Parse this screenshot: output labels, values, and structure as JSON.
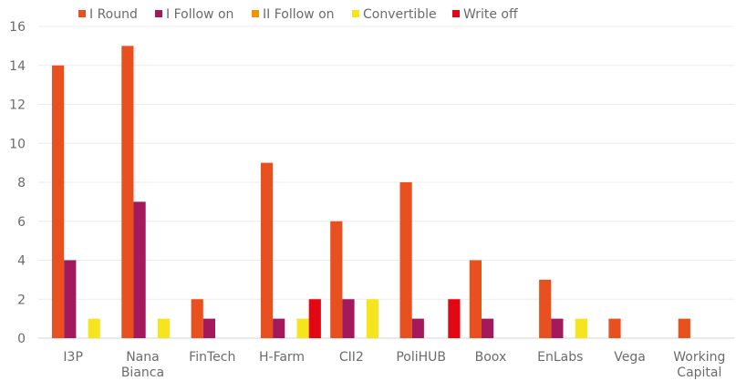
{
  "chart_data": {
    "type": "bar",
    "title": "",
    "xlabel": "",
    "ylabel": "",
    "ylim": [
      0,
      16
    ],
    "yticks": [
      0,
      2,
      4,
      6,
      8,
      10,
      12,
      14,
      16
    ],
    "grid": true,
    "legend_position": "top",
    "categories": [
      [
        "I3P"
      ],
      [
        "Nana",
        "Bianca"
      ],
      [
        "FinTech"
      ],
      [
        "H-Farm"
      ],
      [
        "CII2"
      ],
      [
        "PoliHUB"
      ],
      [
        "Boox"
      ],
      [
        "EnLabs"
      ],
      [
        "Vega"
      ],
      [
        "Working",
        "Capital"
      ]
    ],
    "series": [
      {
        "name": "I Round",
        "color": "#e8501f",
        "values": [
          14,
          15,
          2,
          9,
          6,
          8,
          4,
          3,
          1,
          1
        ]
      },
      {
        "name": "I Follow on",
        "color": "#a3195b",
        "values": [
          4,
          7,
          1,
          1,
          2,
          1,
          1,
          1,
          0,
          0
        ]
      },
      {
        "name": "II Follow on",
        "color": "#f39200",
        "values": [
          0,
          0,
          0,
          0,
          0,
          0,
          0,
          0,
          0,
          0
        ]
      },
      {
        "name": "Convertible",
        "color": "#f6e51e",
        "values": [
          1,
          1,
          0,
          1,
          2,
          0,
          0,
          1,
          0,
          0
        ]
      },
      {
        "name": "Write off",
        "color": "#e30613",
        "values": [
          0,
          0,
          0,
          2,
          0,
          2,
          0,
          0,
          0,
          0
        ]
      }
    ]
  }
}
